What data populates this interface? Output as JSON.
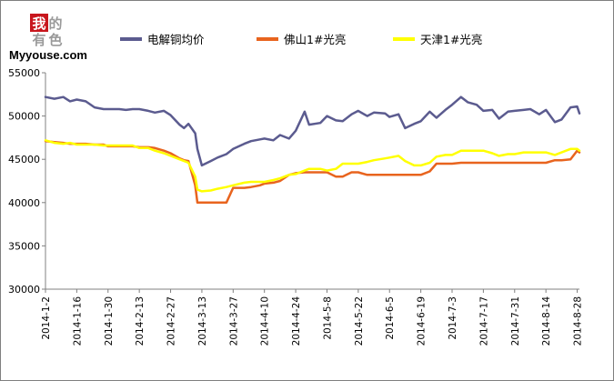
{
  "logo": {
    "chars": [
      "我",
      "的",
      "有",
      "色"
    ],
    "site": "Myyouse.com",
    "color_red": "#c8161d",
    "color_gray": "#9a9a9a"
  },
  "chart_data": {
    "type": "line",
    "title": "",
    "xlabel": "",
    "ylabel": "",
    "ylim": [
      30000,
      55000
    ],
    "yticks": [
      30000,
      35000,
      40000,
      45000,
      50000,
      55000
    ],
    "grid": false,
    "legend_position": "top",
    "x_start": "2014-1-2",
    "x_end": "2014-8-29",
    "xtick_labels": [
      "2014-1-2",
      "2014-1-16",
      "2014-1-30",
      "2014-2-13",
      "2014-2-27",
      "2014-3-13",
      "2014-3-27",
      "2014-4-10",
      "2014-4-24",
      "2014-5-8",
      "2014-5-22",
      "2014-6-5",
      "2014-6-19",
      "2014-7-3",
      "2014-7-17",
      "2014-7-31",
      "2014-8-14",
      "2014-8-28"
    ],
    "series": [
      {
        "name": "电解铜均价",
        "color": "#5b5b8f",
        "x": [
          "2014-1-2",
          "2014-1-6",
          "2014-1-10",
          "2014-1-13",
          "2014-1-16",
          "2014-1-20",
          "2014-1-24",
          "2014-1-28",
          "2014-1-30",
          "2014-2-4",
          "2014-2-7",
          "2014-2-10",
          "2014-2-13",
          "2014-2-17",
          "2014-2-20",
          "2014-2-24",
          "2014-2-27",
          "2014-3-3",
          "2014-3-5",
          "2014-3-7",
          "2014-3-10",
          "2014-3-11",
          "2014-3-13",
          "2014-3-17",
          "2014-3-20",
          "2014-3-24",
          "2014-3-27",
          "2014-4-1",
          "2014-4-4",
          "2014-4-8",
          "2014-4-10",
          "2014-4-14",
          "2014-4-17",
          "2014-4-21",
          "2014-4-24",
          "2014-4-28",
          "2014-4-30",
          "2014-5-5",
          "2014-5-8",
          "2014-5-12",
          "2014-5-15",
          "2014-5-19",
          "2014-5-22",
          "2014-5-26",
          "2014-5-29",
          "2014-6-3",
          "2014-6-5",
          "2014-6-9",
          "2014-6-12",
          "2014-6-16",
          "2014-6-19",
          "2014-6-23",
          "2014-6-26",
          "2014-6-30",
          "2014-7-3",
          "2014-7-7",
          "2014-7-10",
          "2014-7-14",
          "2014-7-17",
          "2014-7-21",
          "2014-7-24",
          "2014-7-28",
          "2014-7-31",
          "2014-8-4",
          "2014-8-7",
          "2014-8-11",
          "2014-8-14",
          "2014-8-18",
          "2014-8-21",
          "2014-8-25",
          "2014-8-28",
          "2014-8-29"
        ],
        "values": [
          52200,
          52000,
          52200,
          51700,
          51900,
          51700,
          51000,
          50800,
          50800,
          50800,
          50700,
          50800,
          50800,
          50600,
          50400,
          50600,
          50100,
          49000,
          48600,
          49100,
          48000,
          46200,
          44300,
          44800,
          45200,
          45600,
          46200,
          46800,
          47100,
          47300,
          47400,
          47200,
          47800,
          47400,
          48300,
          50500,
          49000,
          49200,
          50000,
          49500,
          49400,
          50200,
          50600,
          50000,
          50400,
          50300,
          49900,
          50200,
          48600,
          49100,
          49400,
          50500,
          49800,
          50700,
          51300,
          52200,
          51600,
          51300,
          50600,
          50700,
          49700,
          50500,
          50600,
          50700,
          50800,
          50200,
          50700,
          49300,
          49600,
          51000,
          51100,
          50300
        ]
      },
      {
        "name": "佛山1#光亮",
        "color": "#e8641e",
        "x": [
          "2014-1-2",
          "2014-1-6",
          "2014-1-10",
          "2014-1-13",
          "2014-1-16",
          "2014-1-20",
          "2014-1-24",
          "2014-1-28",
          "2014-1-30",
          "2014-2-4",
          "2014-2-7",
          "2014-2-10",
          "2014-2-13",
          "2014-2-17",
          "2014-2-20",
          "2014-2-24",
          "2014-2-27",
          "2014-3-3",
          "2014-3-5",
          "2014-3-7",
          "2014-3-10",
          "2014-3-11",
          "2014-3-13",
          "2014-3-17",
          "2014-3-20",
          "2014-3-24",
          "2014-3-27",
          "2014-4-1",
          "2014-4-4",
          "2014-4-8",
          "2014-4-10",
          "2014-4-14",
          "2014-4-17",
          "2014-4-21",
          "2014-4-24",
          "2014-4-28",
          "2014-4-30",
          "2014-5-5",
          "2014-5-8",
          "2014-5-12",
          "2014-5-15",
          "2014-5-19",
          "2014-5-22",
          "2014-5-26",
          "2014-5-29",
          "2014-6-3",
          "2014-6-5",
          "2014-6-9",
          "2014-6-12",
          "2014-6-16",
          "2014-6-19",
          "2014-6-23",
          "2014-6-26",
          "2014-6-30",
          "2014-7-3",
          "2014-7-7",
          "2014-7-10",
          "2014-7-14",
          "2014-7-17",
          "2014-7-21",
          "2014-7-24",
          "2014-7-28",
          "2014-7-31",
          "2014-8-4",
          "2014-8-7",
          "2014-8-11",
          "2014-8-14",
          "2014-8-18",
          "2014-8-21",
          "2014-8-25",
          "2014-8-28",
          "2014-8-29"
        ],
        "values": [
          47100,
          47000,
          46900,
          46800,
          46800,
          46800,
          46700,
          46700,
          46500,
          46500,
          46500,
          46500,
          46400,
          46400,
          46300,
          46000,
          45700,
          45100,
          44900,
          44800,
          42000,
          40000,
          40000,
          40000,
          40000,
          40000,
          41700,
          41700,
          41800,
          42000,
          42200,
          42300,
          42500,
          43200,
          43400,
          43500,
          43500,
          43500,
          43500,
          43000,
          43000,
          43500,
          43500,
          43200,
          43200,
          43200,
          43200,
          43200,
          43200,
          43200,
          43200,
          43600,
          44500,
          44500,
          44500,
          44600,
          44600,
          44600,
          44600,
          44600,
          44600,
          44600,
          44600,
          44600,
          44600,
          44600,
          44600,
          44900,
          44900,
          45000,
          46000,
          45800
        ]
      },
      {
        "name": "天津1#光亮",
        "color": "#ffff00",
        "x": [
          "2014-1-2",
          "2014-1-6",
          "2014-1-10",
          "2014-1-13",
          "2014-1-16",
          "2014-1-20",
          "2014-1-24",
          "2014-1-28",
          "2014-1-30",
          "2014-2-4",
          "2014-2-7",
          "2014-2-10",
          "2014-2-13",
          "2014-2-17",
          "2014-2-20",
          "2014-2-24",
          "2014-2-27",
          "2014-3-3",
          "2014-3-5",
          "2014-3-7",
          "2014-3-10",
          "2014-3-11",
          "2014-3-13",
          "2014-3-17",
          "2014-3-20",
          "2014-3-24",
          "2014-3-27",
          "2014-4-1",
          "2014-4-4",
          "2014-4-8",
          "2014-4-10",
          "2014-4-14",
          "2014-4-17",
          "2014-4-21",
          "2014-4-24",
          "2014-4-28",
          "2014-4-30",
          "2014-5-5",
          "2014-5-8",
          "2014-5-12",
          "2014-5-15",
          "2014-5-19",
          "2014-5-22",
          "2014-5-26",
          "2014-5-29",
          "2014-6-3",
          "2014-6-5",
          "2014-6-9",
          "2014-6-12",
          "2014-6-16",
          "2014-6-19",
          "2014-6-23",
          "2014-6-26",
          "2014-6-30",
          "2014-7-3",
          "2014-7-7",
          "2014-7-10",
          "2014-7-14",
          "2014-7-17",
          "2014-7-21",
          "2014-7-24",
          "2014-7-28",
          "2014-7-31",
          "2014-8-4",
          "2014-8-7",
          "2014-8-11",
          "2014-8-14",
          "2014-8-18",
          "2014-8-21",
          "2014-8-25",
          "2014-8-28",
          "2014-8-29"
        ],
        "values": [
          47200,
          46900,
          46800,
          46900,
          46700,
          46700,
          46700,
          46600,
          46600,
          46600,
          46600,
          46600,
          46300,
          46300,
          46000,
          45700,
          45400,
          45000,
          44800,
          44600,
          43000,
          41500,
          41300,
          41400,
          41600,
          41800,
          42000,
          42300,
          42400,
          42400,
          42400,
          42600,
          42800,
          43200,
          43300,
          43700,
          43900,
          43900,
          43700,
          43900,
          44500,
          44500,
          44500,
          44700,
          44900,
          45100,
          45200,
          45400,
          44800,
          44300,
          44300,
          44600,
          45300,
          45500,
          45500,
          46000,
          46000,
          46000,
          46000,
          45700,
          45400,
          45600,
          45600,
          45800,
          45800,
          45800,
          45800,
          45500,
          45800,
          46200,
          46200,
          46000
        ]
      }
    ]
  }
}
